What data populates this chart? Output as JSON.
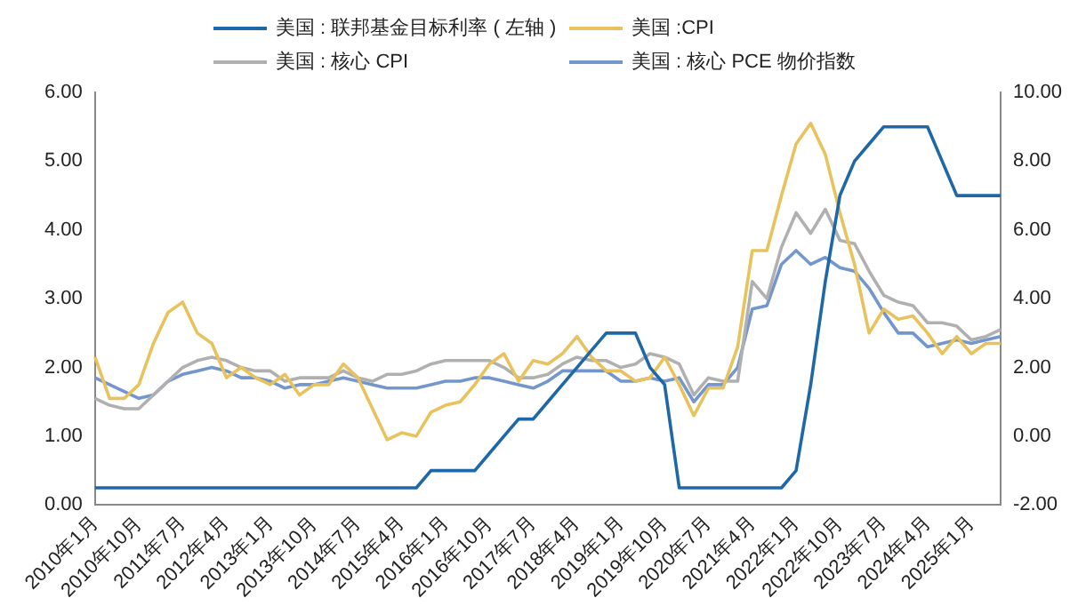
{
  "chart_data": {
    "type": "line",
    "categories": [
      "2010年1月",
      null,
      null,
      "2010年10月",
      null,
      null,
      "2011年7月",
      null,
      null,
      "2012年4月",
      null,
      null,
      "2013年1月",
      null,
      null,
      "2013年10月",
      null,
      null,
      "2014年7月",
      null,
      null,
      "2015年4月",
      null,
      null,
      "2016年1月",
      null,
      null,
      "2016年10月",
      null,
      null,
      "2017年7月",
      null,
      null,
      "2018年4月",
      null,
      null,
      "2019年1月",
      null,
      null,
      "2019年10月",
      null,
      null,
      "2020年7月",
      null,
      null,
      "2021年4月",
      null,
      null,
      "2022年1月",
      null,
      null,
      "2022年10月",
      null,
      null,
      "2023年7月",
      null,
      null,
      "2024年4月",
      null,
      null,
      "2025年1月",
      null,
      null
    ],
    "series": [
      {
        "name": "美国 : 联邦基金目标利率 ( 左轴 )",
        "color": "#1f68a8",
        "values": [
          0.25,
          0.25,
          0.25,
          0.25,
          0.25,
          0.25,
          0.25,
          0.25,
          0.25,
          0.25,
          0.25,
          0.25,
          0.25,
          0.25,
          0.25,
          0.25,
          0.25,
          0.25,
          0.25,
          0.25,
          0.25,
          0.25,
          0.25,
          0.5,
          0.5,
          0.5,
          0.5,
          0.75,
          1.0,
          1.25,
          1.25,
          1.5,
          1.75,
          2.0,
          2.25,
          2.5,
          2.5,
          2.5,
          2.0,
          1.75,
          0.25,
          0.25,
          0.25,
          0.25,
          0.25,
          0.25,
          0.25,
          0.25,
          0.5,
          1.75,
          3.25,
          4.5,
          5.0,
          5.25,
          5.5,
          5.5,
          5.5,
          5.5,
          5.0,
          4.5,
          4.5,
          4.5,
          4.5
        ]
      },
      {
        "name": "美国 :CPI",
        "color": "#e8c25c",
        "axis": "y2",
        "values": [
          2.3,
          1.1,
          1.1,
          1.5,
          2.7,
          3.6,
          3.9,
          3.0,
          2.7,
          1.7,
          2.0,
          1.7,
          1.5,
          1.8,
          1.2,
          1.5,
          1.5,
          2.1,
          1.7,
          0.8,
          -0.1,
          0.1,
          0.0,
          0.7,
          0.9,
          1.0,
          1.5,
          2.1,
          2.4,
          1.6,
          2.2,
          2.1,
          2.4,
          2.9,
          2.3,
          1.9,
          1.9,
          1.6,
          1.7,
          2.3,
          1.5,
          0.6,
          1.4,
          1.4,
          2.6,
          5.4,
          5.4,
          7.0,
          8.5,
          9.1,
          8.2,
          6.5,
          5.0,
          3.0,
          3.7,
          3.4,
          3.5,
          3.0,
          2.4,
          2.9,
          2.4,
          2.7,
          2.7
        ]
      },
      {
        "name": "美国 : 核心 CPI",
        "color": "#b0b0b0",
        "axis": "y2",
        "values": [
          1.1,
          0.9,
          0.8,
          0.8,
          1.2,
          1.6,
          2.0,
          2.2,
          2.3,
          2.2,
          2.0,
          1.9,
          1.9,
          1.6,
          1.7,
          1.7,
          1.7,
          1.9,
          1.7,
          1.6,
          1.8,
          1.8,
          1.9,
          2.1,
          2.2,
          2.2,
          2.2,
          2.2,
          2.0,
          1.7,
          1.7,
          1.8,
          2.1,
          2.3,
          2.2,
          2.2,
          2.0,
          2.1,
          2.4,
          2.3,
          2.1,
          1.2,
          1.7,
          1.6,
          1.6,
          4.5,
          4.0,
          5.5,
          6.5,
          5.9,
          6.6,
          5.7,
          5.6,
          4.8,
          4.1,
          3.9,
          3.8,
          3.3,
          3.3,
          3.2,
          2.8,
          2.9,
          3.1
        ]
      },
      {
        "name": "美国 : 核心 PCE 物价指数",
        "color": "#7396cc",
        "axis": "y2",
        "values": [
          1.7,
          1.5,
          1.3,
          1.1,
          1.2,
          1.6,
          1.8,
          1.9,
          2.0,
          1.9,
          1.7,
          1.7,
          1.6,
          1.4,
          1.5,
          1.5,
          1.6,
          1.7,
          1.6,
          1.5,
          1.4,
          1.4,
          1.4,
          1.5,
          1.6,
          1.6,
          1.7,
          1.7,
          1.6,
          1.5,
          1.4,
          1.6,
          1.9,
          1.9,
          1.9,
          1.9,
          1.6,
          1.6,
          1.7,
          1.6,
          1.7,
          1.0,
          1.5,
          1.5,
          2.0,
          3.7,
          3.8,
          5.0,
          5.4,
          5.0,
          5.2,
          4.9,
          4.8,
          4.3,
          3.6,
          3.0,
          3.0,
          2.6,
          2.7,
          2.8,
          2.7,
          2.8,
          2.9
        ]
      }
    ],
    "ylim": [
      0,
      6
    ],
    "yticks": [
      {
        "value": 0,
        "label": "0.00"
      },
      {
        "value": 1,
        "label": "1.00"
      },
      {
        "value": 2,
        "label": "2.00"
      },
      {
        "value": 3,
        "label": "3.00"
      },
      {
        "value": 4,
        "label": "4.00"
      },
      {
        "value": 5,
        "label": "5.00"
      },
      {
        "value": 6,
        "label": "6.00"
      }
    ],
    "y2lim": [
      -2,
      10
    ],
    "y2ticks": [
      {
        "value": -2,
        "label": "-2.00"
      },
      {
        "value": 0,
        "label": "0.00"
      },
      {
        "value": 2,
        "label": "2.00"
      },
      {
        "value": 4,
        "label": "4.00"
      },
      {
        "value": 6,
        "label": "6.00"
      },
      {
        "value": 8,
        "label": "8.00"
      },
      {
        "value": 10,
        "label": "10.00"
      }
    ],
    "legend": "top",
    "marker": "none",
    "line_style": "solid"
  }
}
